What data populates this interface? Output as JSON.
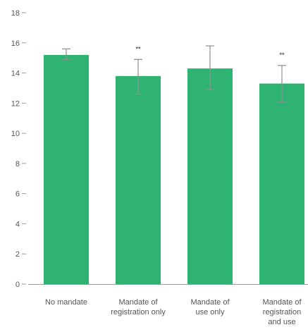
{
  "chart_data": {
    "type": "bar",
    "categories": [
      [
        "No mandate"
      ],
      [
        "Mandate of",
        "registration only"
      ],
      [
        "Mandate of",
        "use only"
      ],
      [
        "Mandate of",
        "registration",
        "and use"
      ]
    ],
    "values": [
      15.2,
      13.8,
      14.3,
      13.3
    ],
    "error_low": [
      14.9,
      12.6,
      12.9,
      12.1
    ],
    "error_high": [
      15.6,
      14.9,
      15.8,
      14.5
    ],
    "significance": [
      "",
      "**",
      "",
      "**"
    ],
    "yticks": [
      "0",
      "2",
      "4",
      "6",
      "8",
      "10",
      "12",
      "14",
      "16",
      "18"
    ],
    "ylim": [
      0,
      18
    ],
    "grid": false,
    "title": "",
    "xlabel": "",
    "ylabel": "",
    "colors": {
      "bar": "#2eb373",
      "axis": "#9a9a9a",
      "text": "#555555"
    }
  }
}
